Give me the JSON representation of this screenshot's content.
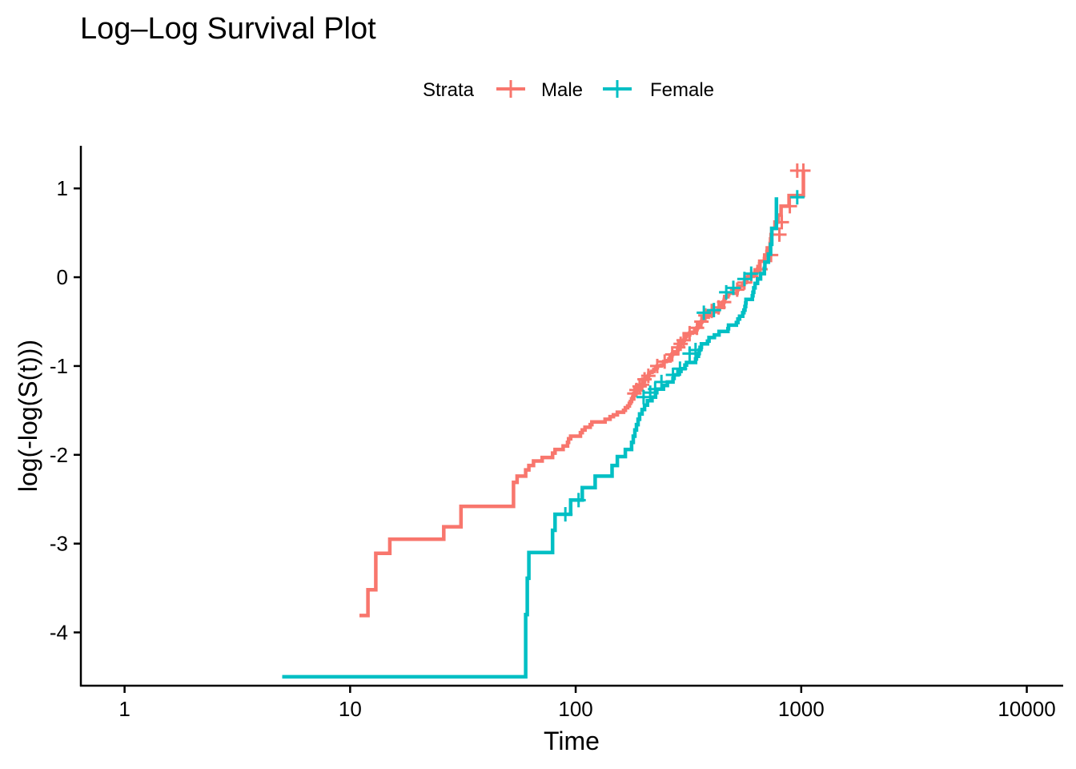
{
  "chart_data": {
    "type": "line",
    "title": "Log–Log Survival Plot",
    "xlabel": "Time",
    "ylabel": "log(-log(S(t)))",
    "x_scale": "log10",
    "xlim": [
      0.64,
      14500
    ],
    "ylim": [
      -4.6,
      1.48
    ],
    "x_ticks": [
      1,
      10,
      100,
      1000,
      10000
    ],
    "x_tick_labels": [
      "1",
      "10",
      "100",
      "1000",
      "10000"
    ],
    "y_ticks": [
      1,
      0,
      -1,
      -2,
      -3,
      -4
    ],
    "y_tick_labels": [
      "1",
      "0",
      "-1",
      "-2",
      "-3",
      "-4"
    ],
    "grid": false,
    "legend": {
      "title": "Strata",
      "position": "top"
    },
    "series": [
      {
        "name": "Male",
        "color": "#F8766D",
        "x": [
          11,
          12,
          13,
          15,
          26,
          31,
          53,
          55,
          60,
          62,
          65,
          71,
          79,
          81,
          88,
          92,
          93,
          95,
          105,
          107,
          110,
          116,
          118,
          135,
          142,
          147,
          153,
          163,
          166,
          170,
          173,
          175,
          177,
          179,
          180,
          181,
          183,
          186,
          189,
          194,
          197,
          199,
          201,
          202,
          208,
          210,
          211,
          212,
          218,
          222,
          226,
          230,
          239,
          245,
          246,
          252,
          259,
          262,
          265,
          267,
          269,
          270,
          283,
          284,
          285,
          286,
          288,
          291,
          293,
          301,
          303,
          305,
          306,
          310,
          320,
          329,
          337,
          340,
          345,
          348,
          350,
          351,
          353,
          361,
          363,
          364,
          371,
          387,
          390,
          394,
          428,
          429,
          433,
          442,
          444,
          450,
          455,
          457,
          460,
          473,
          477,
          519,
          520,
          524,
          533,
          550,
          558,
          567,
          574,
          583,
          613,
          624,
          641,
          643,
          654,
          655,
          687,
          689,
          705,
          707,
          728,
          731,
          735,
          740,
          765,
          791,
          814,
          883,
          1022
        ],
        "y": [
          -3.81,
          -3.52,
          -3.11,
          -2.95,
          -2.81,
          -2.58,
          -2.31,
          -2.24,
          -2.17,
          -2.12,
          -2.07,
          -2.03,
          -1.98,
          -1.94,
          -1.9,
          -1.86,
          -1.82,
          -1.79,
          -1.75,
          -1.72,
          -1.69,
          -1.66,
          -1.63,
          -1.6,
          -1.57,
          -1.55,
          -1.52,
          -1.5,
          -1.47,
          -1.45,
          -1.42,
          -1.4,
          -1.37,
          -1.35,
          -1.33,
          -1.31,
          -1.29,
          -1.27,
          -1.25,
          -1.23,
          -1.21,
          -1.19,
          -1.17,
          -1.15,
          -1.13,
          -1.11,
          -1.09,
          -1.07,
          -1.06,
          -1.04,
          -1.02,
          -1.0,
          -0.99,
          -0.97,
          -0.95,
          -0.94,
          -0.92,
          -0.9,
          -0.89,
          -0.87,
          -0.86,
          -0.84,
          -0.82,
          -0.81,
          -0.79,
          -0.78,
          -0.76,
          -0.75,
          -0.73,
          -0.71,
          -0.7,
          -0.68,
          -0.67,
          -0.65,
          -0.63,
          -0.62,
          -0.6,
          -0.59,
          -0.57,
          -0.56,
          -0.54,
          -0.53,
          -0.51,
          -0.5,
          -0.48,
          -0.46,
          -0.45,
          -0.43,
          -0.41,
          -0.39,
          -0.38,
          -0.36,
          -0.34,
          -0.32,
          -0.3,
          -0.28,
          -0.26,
          -0.24,
          -0.22,
          -0.2,
          -0.18,
          -0.16,
          -0.14,
          -0.12,
          -0.1,
          -0.08,
          -0.06,
          -0.04,
          -0.01,
          0.01,
          0.04,
          0.06,
          0.09,
          0.12,
          0.15,
          0.18,
          0.21,
          0.25,
          0.29,
          0.33,
          0.38,
          0.43,
          0.48,
          0.55,
          0.62,
          0.7,
          0.8,
          0.92,
          1.2
        ],
        "censored_x": [
          182,
          186,
          192,
          197,
          202,
          210,
          230,
          248,
          268,
          285,
          292,
          301,
          320,
          345,
          361,
          376,
          401,
          430,
          455,
          520,
          560,
          600,
          660,
          735,
          800,
          820,
          890,
          960,
          1022
        ],
        "censored_y": [
          -1.31,
          -1.27,
          -1.23,
          -1.21,
          -1.15,
          -1.11,
          -1.0,
          -0.95,
          -0.87,
          -0.79,
          -0.75,
          -0.71,
          -0.63,
          -0.57,
          -0.5,
          -0.43,
          -0.38,
          -0.34,
          -0.28,
          -0.14,
          -0.06,
          0.01,
          0.09,
          0.25,
          0.48,
          0.62,
          0.8,
          1.2,
          1.2
        ]
      },
      {
        "name": "Female",
        "color": "#00BFC4",
        "x": [
          5,
          60,
          61,
          62,
          79,
          81,
          95,
          107,
          122,
          145,
          153,
          166,
          177,
          180,
          183,
          186,
          189,
          192,
          197,
          202,
          208,
          218,
          226,
          229,
          245,
          255,
          270,
          273,
          284,
          293,
          305,
          310,
          340,
          343,
          350,
          353,
          356,
          361,
          384,
          390,
          412,
          432,
          473,
          476,
          516,
          524,
          533,
          550,
          557,
          563,
          567,
          569,
          607,
          611,
          616,
          624,
          640,
          660,
          686,
          690,
          715,
          731,
          740,
          776
        ],
        "y": [
          -4.5,
          -3.8,
          -3.39,
          -3.1,
          -2.85,
          -2.67,
          -2.51,
          -2.37,
          -2.24,
          -2.12,
          -2.02,
          -1.94,
          -1.86,
          -1.79,
          -1.72,
          -1.66,
          -1.6,
          -1.54,
          -1.49,
          -1.44,
          -1.39,
          -1.35,
          -1.3,
          -1.26,
          -1.22,
          -1.18,
          -1.14,
          -1.1,
          -1.06,
          -1.03,
          -0.99,
          -0.96,
          -0.92,
          -0.89,
          -0.86,
          -0.82,
          -0.79,
          -0.75,
          -0.72,
          -0.68,
          -0.65,
          -0.61,
          -0.58,
          -0.54,
          -0.51,
          -0.47,
          -0.44,
          -0.4,
          -0.37,
          -0.33,
          -0.29,
          -0.25,
          -0.21,
          -0.17,
          -0.12,
          -0.07,
          -0.02,
          0.04,
          0.1,
          0.17,
          0.26,
          0.37,
          0.55,
          0.9
        ],
        "censored_x": [
          90,
          103,
          200,
          214,
          225,
          240,
          270,
          290,
          320,
          340,
          370,
          410,
          465,
          500,
          560,
          600,
          960
        ],
        "censored_y": [
          -2.67,
          -2.51,
          -1.35,
          -1.3,
          -1.26,
          -1.18,
          -1.1,
          -1.03,
          -0.86,
          -0.82,
          -0.4,
          -0.37,
          -0.17,
          -0.12,
          -0.02,
          0.04,
          0.9
        ]
      }
    ]
  }
}
